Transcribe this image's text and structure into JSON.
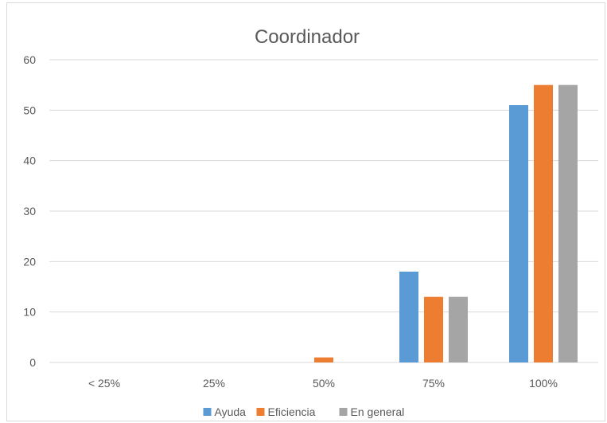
{
  "chart_data": {
    "type": "bar",
    "title": "Coordinador",
    "categories": [
      "< 25%",
      "25%",
      "50%",
      "75%",
      "100%"
    ],
    "series": [
      {
        "name": "Ayuda",
        "color": "#5b9bd5",
        "values": [
          0,
          0,
          0,
          18,
          51
        ]
      },
      {
        "name": "Eficiencia",
        "color": "#ed7d31",
        "values": [
          0,
          0,
          1,
          13,
          55
        ]
      },
      {
        "name": "En general",
        "color": "#a5a5a5",
        "values": [
          0,
          0,
          0,
          13,
          55
        ]
      }
    ],
    "ylim": [
      0,
      60
    ],
    "yticks": [
      0,
      10,
      20,
      30,
      40,
      50,
      60
    ],
    "grid": true,
    "legend": "bottom"
  }
}
